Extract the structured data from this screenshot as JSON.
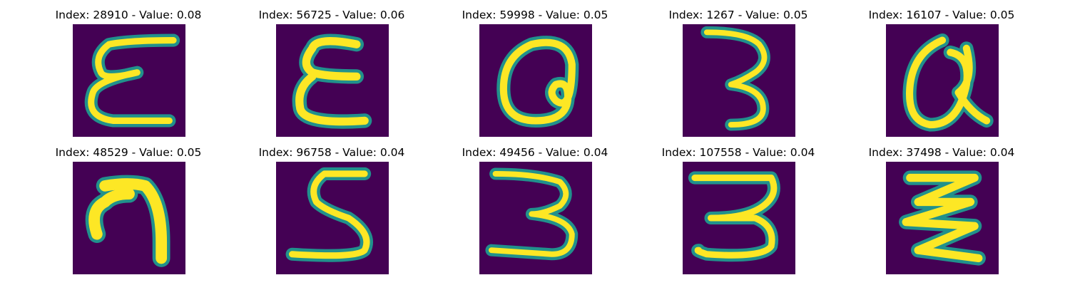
{
  "colors": {
    "background": "#440154",
    "mid": "#21918c",
    "high": "#fde725"
  },
  "panels": [
    {
      "index": "28910",
      "value": "0.08",
      "title": "Index: 28910 - Value: 0.08",
      "glyph": "E-cursive"
    },
    {
      "index": "56725",
      "value": "0.06",
      "title": "Index: 56725 - Value: 0.06",
      "glyph": "E-cursive"
    },
    {
      "index": "59998",
      "value": "0.05",
      "title": "Index: 59998 - Value: 0.05",
      "glyph": "loop-a"
    },
    {
      "index": "1267",
      "value": "0.05",
      "title": "Index: 1267 - Value: 0.05",
      "glyph": "three"
    },
    {
      "index": "16107",
      "value": "0.05",
      "title": "Index: 16107 - Value: 0.05",
      "glyph": "loop-a"
    },
    {
      "index": "48529",
      "value": "0.05",
      "title": "Index: 48529 - Value: 0.05",
      "glyph": "hook"
    },
    {
      "index": "96758",
      "value": "0.04",
      "title": "Index: 96758 - Value: 0.04",
      "glyph": "five"
    },
    {
      "index": "49456",
      "value": "0.04",
      "title": "Index: 49456 - Value: 0.04",
      "glyph": "three"
    },
    {
      "index": "107558",
      "value": "0.04",
      "title": "Index: 107558 - Value: 0.04",
      "glyph": "three"
    },
    {
      "index": "37498",
      "value": "0.04",
      "title": "Index: 37498 - Value: 0.04",
      "glyph": "zigzag"
    }
  ]
}
